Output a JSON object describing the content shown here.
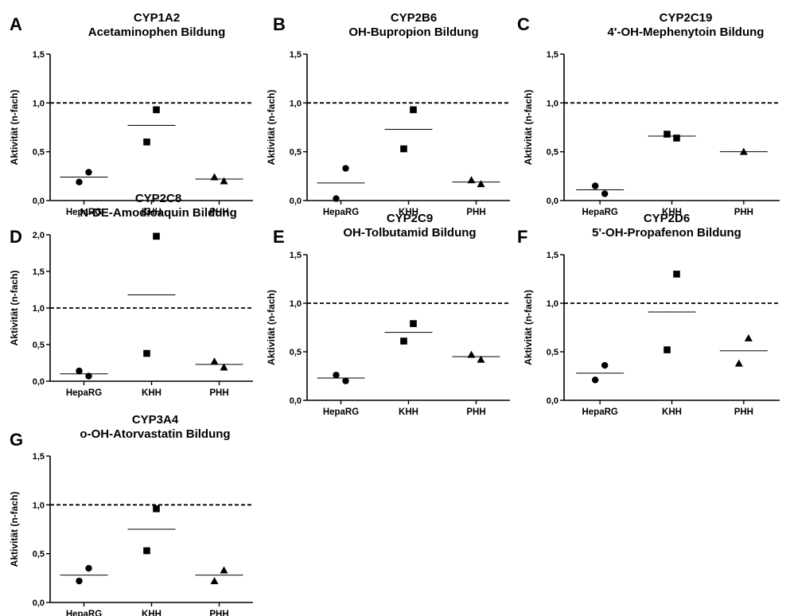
{
  "figure": {
    "background": "#ffffff",
    "foreground": "#000000"
  },
  "chart_data": [
    {
      "panel": "A",
      "type": "scatter",
      "title": "CYP1A2",
      "subtitle": "Acetaminophen Bildung",
      "ylabel": "Aktivität (n-fach)",
      "categories": [
        "HepaRG",
        "KHH",
        "PHH"
      ],
      "yticks": [
        "0,0",
        "0,5",
        "1,0",
        "1,5"
      ],
      "ylim": [
        0,
        1.5
      ],
      "reference_line": 1.0,
      "series": [
        {
          "category": "HepaRG",
          "marker": "circle",
          "values": [
            0.29,
            0.19
          ],
          "mean": 0.24
        },
        {
          "category": "KHH",
          "marker": "square",
          "values": [
            0.93,
            0.6
          ],
          "mean": 0.77
        },
        {
          "category": "PHH",
          "marker": "triangle",
          "values": [
            0.2,
            0.24
          ],
          "mean": 0.22
        }
      ]
    },
    {
      "panel": "B",
      "type": "scatter",
      "title": "CYP2B6",
      "subtitle": "OH-Bupropion Bildung",
      "ylabel": "Aktivität (n-fach)",
      "categories": [
        "HepaRG",
        "KHH",
        "PHH"
      ],
      "yticks": [
        "0,0",
        "0,5",
        "1,0",
        "1,5"
      ],
      "ylim": [
        0,
        1.5
      ],
      "reference_line": 1.0,
      "series": [
        {
          "category": "HepaRG",
          "marker": "circle",
          "values": [
            0.33,
            0.02
          ],
          "mean": 0.18
        },
        {
          "category": "KHH",
          "marker": "square",
          "values": [
            0.93,
            0.53
          ],
          "mean": 0.73
        },
        {
          "category": "PHH",
          "marker": "triangle",
          "values": [
            0.17,
            0.21
          ],
          "mean": 0.19
        }
      ]
    },
    {
      "panel": "C",
      "type": "scatter",
      "title": "CYP2C19",
      "subtitle": "4'-OH-Mephenytoin Bildung",
      "ylabel": "Aktivität (n-fach)",
      "categories": [
        "HepaRG",
        "KHH",
        "PHH"
      ],
      "yticks": [
        "0,0",
        "0,5",
        "1,0",
        "1,5"
      ],
      "ylim": [
        0,
        1.5
      ],
      "reference_line": 1.0,
      "series": [
        {
          "category": "HepaRG",
          "marker": "circle",
          "values": [
            0.07,
            0.15
          ],
          "mean": 0.11
        },
        {
          "category": "KHH",
          "marker": "square",
          "values": [
            0.64,
            0.68
          ],
          "mean": 0.66
        },
        {
          "category": "PHH",
          "marker": "triangle",
          "values": [
            0.5
          ],
          "mean": 0.5
        }
      ]
    },
    {
      "panel": "D",
      "type": "scatter",
      "title": "CYP2C8",
      "subtitle": "N-DE-Amodioaquin Bildung",
      "ylabel": "Aktivität (n-fach)",
      "categories": [
        "HepaRG",
        "KHH",
        "PHH"
      ],
      "yticks": [
        "0,0",
        "0,5",
        "1,0",
        "1,5",
        "2,0"
      ],
      "ylim": [
        0,
        2.0
      ],
      "reference_line": 1.0,
      "series": [
        {
          "category": "HepaRG",
          "marker": "circle",
          "values": [
            0.07,
            0.14
          ],
          "mean": 0.1
        },
        {
          "category": "KHH",
          "marker": "square",
          "values": [
            1.98,
            0.38
          ],
          "mean": 1.18
        },
        {
          "category": "PHH",
          "marker": "triangle",
          "values": [
            0.19,
            0.27
          ],
          "mean": 0.23
        }
      ]
    },
    {
      "panel": "E",
      "type": "scatter",
      "title": "CYP2C9",
      "subtitle": "OH-Tolbutamid Bildung",
      "ylabel": "Aktivität (n-fach)",
      "categories": [
        "HepaRG",
        "KHH",
        "PHH"
      ],
      "yticks": [
        "0,0",
        "0,5",
        "1,0",
        "1,5"
      ],
      "ylim": [
        0,
        1.5
      ],
      "reference_line": 1.0,
      "series": [
        {
          "category": "HepaRG",
          "marker": "circle",
          "values": [
            0.2,
            0.26
          ],
          "mean": 0.23
        },
        {
          "category": "KHH",
          "marker": "square",
          "values": [
            0.79,
            0.61
          ],
          "mean": 0.7
        },
        {
          "category": "PHH",
          "marker": "triangle",
          "values": [
            0.42,
            0.47
          ],
          "mean": 0.45
        }
      ]
    },
    {
      "panel": "F",
      "type": "scatter",
      "title": "CYP2D6",
      "subtitle": "5'-OH-Propafenon Bildung",
      "ylabel": "Aktivität (n-fach)",
      "categories": [
        "HepaRG",
        "KHH",
        "PHH"
      ],
      "yticks": [
        "0,0",
        "0,5",
        "1,0",
        "1,5"
      ],
      "ylim": [
        0,
        1.5
      ],
      "reference_line": 1.0,
      "series": [
        {
          "category": "HepaRG",
          "marker": "circle",
          "values": [
            0.36,
            0.21
          ],
          "mean": 0.28
        },
        {
          "category": "KHH",
          "marker": "square",
          "values": [
            1.3,
            0.52
          ],
          "mean": 0.91
        },
        {
          "category": "PHH",
          "marker": "triangle",
          "values": [
            0.64,
            0.38
          ],
          "mean": 0.51
        }
      ]
    },
    {
      "panel": "G",
      "type": "scatter",
      "title": "CYP3A4",
      "subtitle": "o-OH-Atorvastatin Bildung",
      "ylabel": "Aktivität (n-fach)",
      "categories": [
        "HepaRG",
        "KHH",
        "PHH"
      ],
      "yticks": [
        "0,0",
        "0,5",
        "1,0",
        "1,5"
      ],
      "ylim": [
        0,
        1.5
      ],
      "reference_line": 1.0,
      "series": [
        {
          "category": "HepaRG",
          "marker": "circle",
          "values": [
            0.35,
            0.22
          ],
          "mean": 0.28
        },
        {
          "category": "KHH",
          "marker": "square",
          "values": [
            0.96,
            0.53
          ],
          "mean": 0.75
        },
        {
          "category": "PHH",
          "marker": "triangle",
          "values": [
            0.33,
            0.22
          ],
          "mean": 0.28
        }
      ]
    }
  ]
}
